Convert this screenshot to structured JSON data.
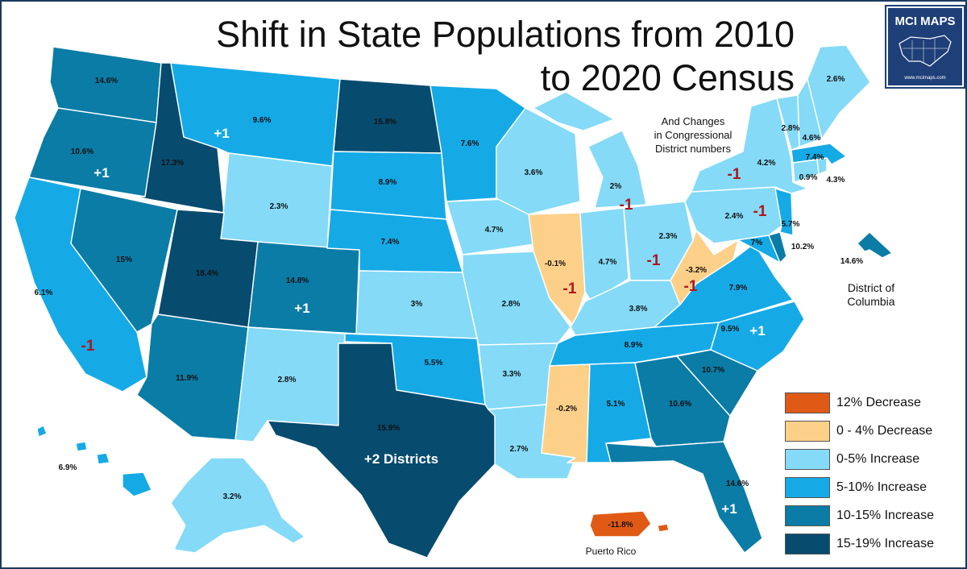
{
  "title": {
    "line1": "Shift in State Populations from 2010",
    "line2": "to 2020 Census"
  },
  "subtitle": {
    "line1": "And Changes",
    "line2": "in Congressional",
    "line3": "District numbers"
  },
  "logo": {
    "text": "MCI MAPS",
    "url": "www.mcimaps.com"
  },
  "colors": {
    "decrease_12": "#e05a16",
    "decrease_0_4": "#fdd089",
    "increase_0_5": "#84daf7",
    "increase_5_10": "#15aae6",
    "increase_10_15": "#0a7ca6",
    "increase_15_19": "#074b6f",
    "border": "#1a3a5c"
  },
  "legend": [
    {
      "label": "12% Decrease",
      "color": "#e05a16"
    },
    {
      "label": "0 - 4% Decrease",
      "color": "#fdd089"
    },
    {
      "label": "0-5% Increase",
      "color": "#84daf7"
    },
    {
      "label": "5-10% Increase",
      "color": "#15aae6"
    },
    {
      "label": "10-15% Increase",
      "color": "#0a7ca6"
    },
    {
      "label": "15-19% Increase",
      "color": "#074b6f"
    }
  ],
  "states": {
    "wa": {
      "name": "Washington",
      "value": "14.6%",
      "category": "increase_10_15"
    },
    "or": {
      "name": "Oregon",
      "value": "10.6%",
      "category": "increase_10_15",
      "district_change": "+1"
    },
    "ca": {
      "name": "California",
      "value": "6.1%",
      "category": "increase_5_10",
      "district_change": "-1"
    },
    "nv": {
      "name": "Nevada",
      "value": "15%",
      "category": "increase_10_15"
    },
    "id": {
      "name": "Idaho",
      "value": "17.3%",
      "category": "increase_15_19"
    },
    "mt": {
      "name": "Montana",
      "value": "9.6%",
      "category": "increase_5_10",
      "district_change": "+1"
    },
    "wy": {
      "name": "Wyoming",
      "value": "2.3%",
      "category": "increase_0_5"
    },
    "ut": {
      "name": "Utah",
      "value": "18.4%",
      "category": "increase_15_19"
    },
    "co": {
      "name": "Colorado",
      "value": "14.8%",
      "category": "increase_10_15",
      "district_change": "+1"
    },
    "az": {
      "name": "Arizona",
      "value": "11.9%",
      "category": "increase_10_15"
    },
    "nm": {
      "name": "New Mexico",
      "value": "2.8%",
      "category": "increase_0_5"
    },
    "nd": {
      "name": "North Dakota",
      "value": "15.8%",
      "category": "increase_15_19"
    },
    "sd": {
      "name": "South Dakota",
      "value": "8.9%",
      "category": "increase_5_10"
    },
    "ne": {
      "name": "Nebraska",
      "value": "7.4%",
      "category": "increase_5_10"
    },
    "ks": {
      "name": "Kansas",
      "value": "3%",
      "category": "increase_0_5"
    },
    "ok": {
      "name": "Oklahoma",
      "value": "5.5%",
      "category": "increase_5_10"
    },
    "tx": {
      "name": "Texas",
      "value": "15.9%",
      "category": "increase_15_19",
      "district_change": "+2 Districts"
    },
    "mn": {
      "name": "Minnesota",
      "value": "7.6%",
      "category": "increase_5_10"
    },
    "ia": {
      "name": "Iowa",
      "value": "4.7%",
      "category": "increase_0_5"
    },
    "mo": {
      "name": "Missouri",
      "value": "2.8%",
      "category": "increase_0_5"
    },
    "ar": {
      "name": "Arkansas",
      "value": "3.3%",
      "category": "increase_0_5"
    },
    "la": {
      "name": "Louisiana",
      "value": "2.7%",
      "category": "increase_0_5"
    },
    "wi": {
      "name": "Wisconsin",
      "value": "3.6%",
      "category": "increase_0_5"
    },
    "il": {
      "name": "Illinois",
      "value": "-0.1%",
      "category": "decrease_0_4",
      "district_change": "-1"
    },
    "mi": {
      "name": "Michigan",
      "value": "2%",
      "category": "increase_0_5",
      "district_change": "-1"
    },
    "in": {
      "name": "Indiana",
      "value": "4.7%",
      "category": "increase_0_5"
    },
    "oh": {
      "name": "Ohio",
      "value": "2.3%",
      "category": "increase_0_5",
      "district_change": "-1"
    },
    "ky": {
      "name": "Kentucky",
      "value": "3.8%",
      "category": "increase_0_5"
    },
    "tn": {
      "name": "Tennessee",
      "value": "8.9%",
      "category": "increase_5_10"
    },
    "ms": {
      "name": "Mississippi",
      "value": "-0.2%",
      "category": "decrease_0_4"
    },
    "al": {
      "name": "Alabama",
      "value": "5.1%",
      "category": "increase_5_10"
    },
    "ga": {
      "name": "Georgia",
      "value": "10.6%",
      "category": "increase_10_15"
    },
    "fl": {
      "name": "Florida",
      "value": "14.6%",
      "category": "increase_10_15",
      "district_change": "+1"
    },
    "sc": {
      "name": "South Carolina",
      "value": "10.7%",
      "category": "increase_10_15"
    },
    "nc": {
      "name": "North Carolina",
      "value": "9.5%",
      "category": "increase_5_10",
      "district_change": "+1"
    },
    "va": {
      "name": "Virginia",
      "value": "7.9%",
      "category": "increase_5_10"
    },
    "wv": {
      "name": "West Virginia",
      "value": "-3.2%",
      "category": "decrease_0_4",
      "district_change": "-1"
    },
    "md": {
      "name": "Maryland",
      "value": "7%",
      "category": "increase_5_10"
    },
    "de": {
      "name": "Delaware",
      "value": "10.2%",
      "category": "increase_10_15"
    },
    "pa": {
      "name": "Pennsylvania",
      "value": "2.4%",
      "category": "increase_0_5",
      "district_change": "-1"
    },
    "nj": {
      "name": "New Jersey",
      "value": "5.7%",
      "category": "increase_5_10"
    },
    "ny": {
      "name": "New York",
      "value": "4.2%",
      "category": "increase_0_5",
      "district_change": "-1"
    },
    "ct": {
      "name": "Connecticut",
      "value": "0.9%",
      "category": "increase_0_5"
    },
    "ri": {
      "name": "Rhode Island",
      "value": "4.3%",
      "category": "increase_0_5"
    },
    "ma": {
      "name": "Massachusetts",
      "value": "7.4%",
      "category": "increase_5_10"
    },
    "vt": {
      "name": "Vermont",
      "value": "2.8%",
      "category": "increase_0_5"
    },
    "nh": {
      "name": "New Hampshire",
      "value": "4.6%",
      "category": "increase_0_5"
    },
    "me": {
      "name": "Maine",
      "value": "2.6%",
      "category": "increase_0_5"
    },
    "ak": {
      "name": "Alaska",
      "value": "3.2%",
      "category": "increase_0_5"
    },
    "hi": {
      "name": "Hawaii",
      "value": "6.9%",
      "category": "increase_5_10"
    },
    "dc": {
      "name": "District of Columbia",
      "value": "14.6%",
      "category": "increase_10_15",
      "label_line1": "District of",
      "label_line2": "Columbia"
    },
    "pr": {
      "name": "Puerto Rico",
      "value": "-11.8%",
      "category": "decrease_12",
      "label": "Puerto Rico"
    }
  }
}
